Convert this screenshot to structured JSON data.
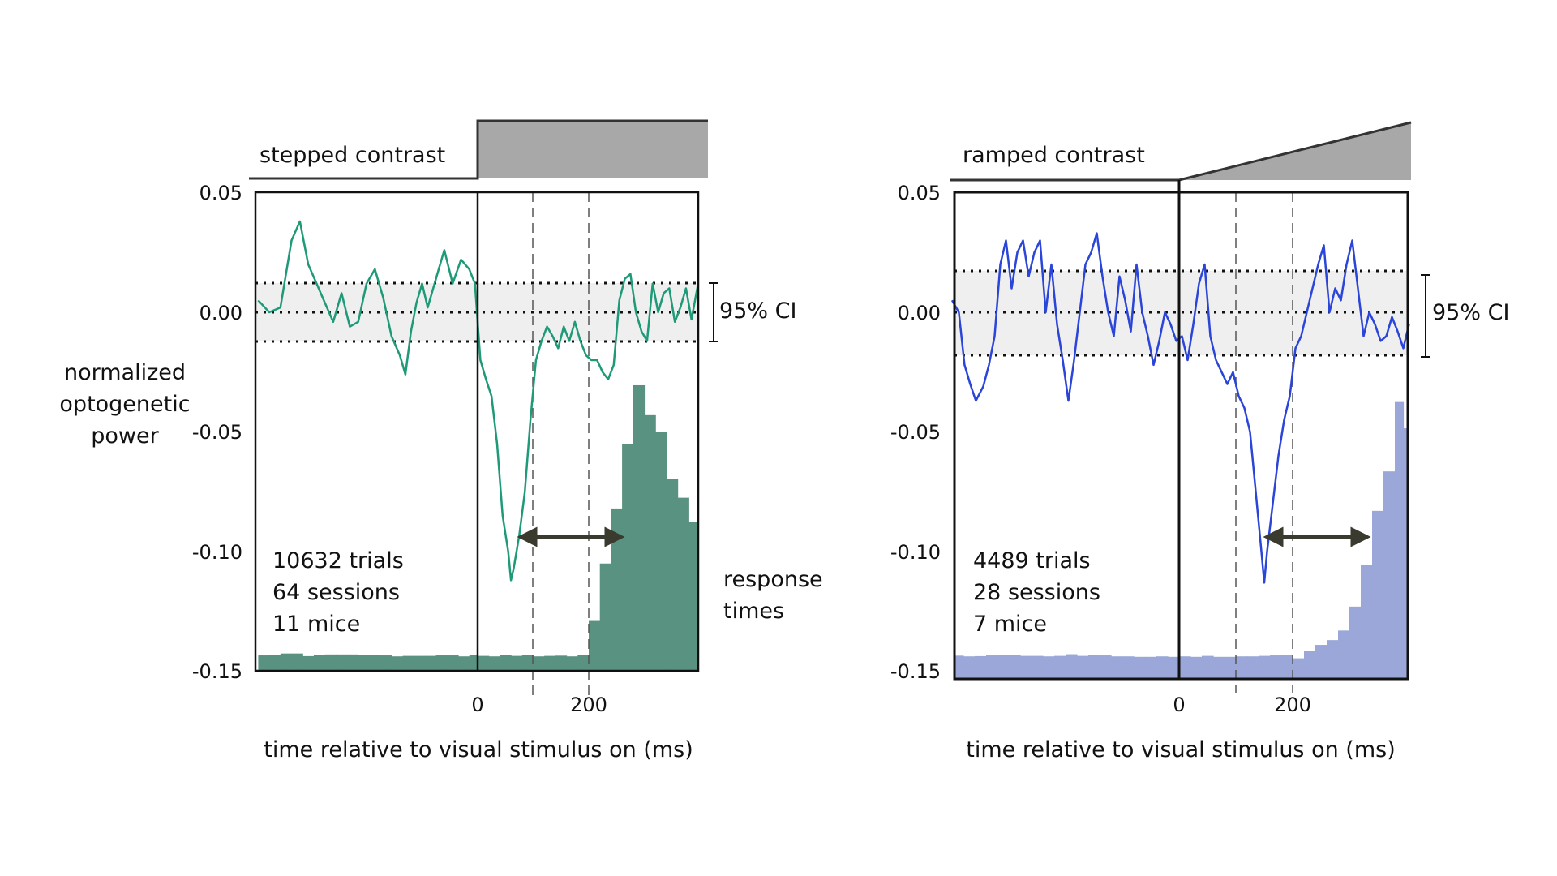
{
  "chart_data": [
    {
      "type": "line",
      "panel_label": "stepped contrast",
      "ylabel": "normalized optogenetic power",
      "ylabel_lines": [
        "normalized",
        "optogenetic",
        "power"
      ],
      "xlabel": "time relative to visual stimulus on (ms)",
      "yticks": [
        "0.05",
        "0.00",
        "-0.05",
        "-0.10",
        "-0.15"
      ],
      "ytick_values": [
        0.05,
        0.0,
        -0.05,
        -0.1,
        -0.15
      ],
      "xticks": [
        "0",
        "200"
      ],
      "xtick_values": [
        0,
        200
      ],
      "xlim": [
        -395,
        397
      ],
      "ylim": [
        -0.15,
        0.05
      ],
      "ci_label": "95% CI",
      "ci_bounds": [
        -0.0115,
        0.0125
      ],
      "stats": [
        "10632 trials",
        "64 sessions",
        "11 mice"
      ],
      "hist_label": [
        "response",
        "times"
      ],
      "colors": {
        "trace": "#1f9a78",
        "hist": "#5a9282",
        "ci_band": "#efefef"
      },
      "stimulus_shape": "step",
      "vlines_dashed_ms": [
        100,
        200
      ],
      "arrow_ms": [
        100,
        245
      ],
      "series": [
        {
          "values": [
            [
              -395,
              0.005
            ],
            [
              -375,
              0.0
            ],
            [
              -355,
              0.002
            ],
            [
              -335,
              0.03
            ],
            [
              -320,
              0.038
            ],
            [
              -305,
              0.02
            ],
            [
              -290,
              0.012
            ],
            [
              -275,
              0.004
            ],
            [
              -260,
              -0.004
            ],
            [
              -245,
              0.008
            ],
            [
              -230,
              -0.006
            ],
            [
              -215,
              -0.004
            ],
            [
              -200,
              0.012
            ],
            [
              -185,
              0.018
            ],
            [
              -170,
              0.006
            ],
            [
              -155,
              -0.01
            ],
            [
              -140,
              -0.018
            ],
            [
              -130,
              -0.026
            ],
            [
              -120,
              -0.008
            ],
            [
              -110,
              0.004
            ],
            [
              -100,
              0.012
            ],
            [
              -90,
              0.002
            ],
            [
              -80,
              0.01
            ],
            [
              -70,
              0.018
            ],
            [
              -60,
              0.026
            ],
            [
              -45,
              0.012
            ],
            [
              -30,
              0.022
            ],
            [
              -15,
              0.018
            ],
            [
              -5,
              0.012
            ],
            [
              5,
              -0.02
            ],
            [
              15,
              -0.028
            ],
            [
              25,
              -0.035
            ],
            [
              35,
              -0.055
            ],
            [
              45,
              -0.085
            ],
            [
              55,
              -0.1
            ],
            [
              60,
              -0.112
            ],
            [
              65,
              -0.107
            ],
            [
              75,
              -0.093
            ],
            [
              85,
              -0.075
            ],
            [
              95,
              -0.045
            ],
            [
              105,
              -0.02
            ],
            [
              115,
              -0.012
            ],
            [
              125,
              -0.006
            ],
            [
              135,
              -0.01
            ],
            [
              145,
              -0.015
            ],
            [
              155,
              -0.006
            ],
            [
              165,
              -0.012
            ],
            [
              175,
              -0.004
            ],
            [
              185,
              -0.012
            ],
            [
              195,
              -0.018
            ],
            [
              205,
              -0.02
            ],
            [
              215,
              -0.02
            ],
            [
              225,
              -0.025
            ],
            [
              235,
              -0.028
            ],
            [
              245,
              -0.022
            ],
            [
              255,
              0.005
            ],
            [
              265,
              0.014
            ],
            [
              275,
              0.016
            ],
            [
              285,
              0.0
            ],
            [
              295,
              -0.008
            ],
            [
              305,
              -0.012
            ],
            [
              315,
              0.012
            ],
            [
              325,
              0.0
            ],
            [
              335,
              0.008
            ],
            [
              345,
              0.01
            ],
            [
              355,
              -0.004
            ],
            [
              365,
              0.002
            ],
            [
              375,
              0.01
            ],
            [
              385,
              -0.003
            ],
            [
              397,
              0.012
            ]
          ]
        }
      ],
      "histogram": {
        "bins": [
          [
            -395,
            -375,
            -0.1434
          ],
          [
            -375,
            -355,
            -0.1433
          ],
          [
            -355,
            -335,
            -0.1426
          ],
          [
            -335,
            -315,
            -0.1426
          ],
          [
            -315,
            -295,
            -0.1437
          ],
          [
            -295,
            -275,
            -0.1432
          ],
          [
            -275,
            -255,
            -0.143
          ],
          [
            -255,
            -235,
            -0.143
          ],
          [
            -235,
            -215,
            -0.143
          ],
          [
            -215,
            -195,
            -0.1432
          ],
          [
            -195,
            -175,
            -0.1432
          ],
          [
            -175,
            -155,
            -0.1434
          ],
          [
            -155,
            -135,
            -0.1438
          ],
          [
            -135,
            -115,
            -0.1436
          ],
          [
            -115,
            -95,
            -0.1436
          ],
          [
            -95,
            -75,
            -0.1436
          ],
          [
            -75,
            -55,
            -0.1434
          ],
          [
            -55,
            -35,
            -0.1434
          ],
          [
            -35,
            -15,
            -0.1438
          ],
          [
            -15,
            0,
            -0.1432
          ],
          [
            0,
            20,
            -0.1436
          ],
          [
            20,
            40,
            -0.1438
          ],
          [
            40,
            60,
            -0.1432
          ],
          [
            60,
            80,
            -0.1436
          ],
          [
            80,
            100,
            -0.1432
          ],
          [
            100,
            120,
            -0.1438
          ],
          [
            120,
            140,
            -0.1436
          ],
          [
            140,
            160,
            -0.1435
          ],
          [
            160,
            180,
            -0.1438
          ],
          [
            180,
            200,
            -0.1432
          ],
          [
            200,
            220,
            -0.129
          ],
          [
            220,
            240,
            -0.105
          ],
          [
            240,
            260,
            -0.082
          ],
          [
            260,
            280,
            -0.055
          ],
          [
            280,
            300,
            -0.0305
          ],
          [
            300,
            320,
            -0.043
          ],
          [
            320,
            340,
            -0.05
          ],
          [
            340,
            360,
            -0.0695
          ],
          [
            360,
            380,
            -0.0775
          ],
          [
            380,
            397,
            -0.0875
          ]
        ]
      }
    },
    {
      "type": "line",
      "panel_label": "ramped contrast",
      "xlabel": "time relative to visual stimulus on (ms)",
      "yticks": [
        "0.05",
        "0.00",
        "-0.05",
        "-0.10",
        "-0.15"
      ],
      "ytick_values": [
        0.05,
        0.0,
        -0.05,
        -0.1,
        -0.15
      ],
      "xticks": [
        "0",
        "200"
      ],
      "xtick_values": [
        0,
        200
      ],
      "xlim": [
        -400,
        405
      ],
      "ylim": [
        -0.15,
        0.05
      ],
      "ci_label": "95% CI",
      "ci_bounds": [
        -0.0185,
        0.017
      ],
      "stats": [
        "4489 trials",
        "28 sessions",
        "7 mice"
      ],
      "colors": {
        "trace": "#2a45d8",
        "hist": "#9aa7d8",
        "ci_band": "#efefef"
      },
      "stimulus_shape": "ramp",
      "vlines_dashed_ms": [
        100,
        200
      ],
      "arrow_ms": [
        180,
        310
      ],
      "series": [
        {
          "values": [
            [
              -400,
              0.005
            ],
            [
              -388,
              0.0
            ],
            [
              -378,
              -0.022
            ],
            [
              -368,
              -0.03
            ],
            [
              -358,
              -0.037
            ],
            [
              -345,
              -0.031
            ],
            [
              -335,
              -0.022
            ],
            [
              -325,
              -0.01
            ],
            [
              -315,
              0.02
            ],
            [
              -305,
              0.03
            ],
            [
              -295,
              0.01
            ],
            [
              -285,
              0.025
            ],
            [
              -275,
              0.03
            ],
            [
              -265,
              0.015
            ],
            [
              -255,
              0.025
            ],
            [
              -245,
              0.03
            ],
            [
              -235,
              0.0
            ],
            [
              -225,
              0.02
            ],
            [
              -215,
              -0.005
            ],
            [
              -205,
              -0.02
            ],
            [
              -195,
              -0.037
            ],
            [
              -185,
              -0.02
            ],
            [
              -175,
              0.0
            ],
            [
              -165,
              0.02
            ],
            [
              -155,
              0.025
            ],
            [
              -145,
              0.033
            ],
            [
              -135,
              0.015
            ],
            [
              -125,
              0.0
            ],
            [
              -115,
              -0.01
            ],
            [
              -105,
              0.015
            ],
            [
              -95,
              0.005
            ],
            [
              -85,
              -0.008
            ],
            [
              -75,
              0.02
            ],
            [
              -65,
              0.0
            ],
            [
              -55,
              -0.01
            ],
            [
              -45,
              -0.022
            ],
            [
              -35,
              -0.012
            ],
            [
              -25,
              0.0
            ],
            [
              -15,
              -0.005
            ],
            [
              -5,
              -0.012
            ],
            [
              5,
              -0.01
            ],
            [
              15,
              -0.02
            ],
            [
              25,
              -0.005
            ],
            [
              35,
              0.012
            ],
            [
              45,
              0.02
            ],
            [
              55,
              -0.01
            ],
            [
              65,
              -0.02
            ],
            [
              75,
              -0.025
            ],
            [
              85,
              -0.03
            ],
            [
              95,
              -0.025
            ],
            [
              105,
              -0.035
            ],
            [
              115,
              -0.04
            ],
            [
              125,
              -0.05
            ],
            [
              135,
              -0.075
            ],
            [
              145,
              -0.1
            ],
            [
              150,
              -0.113
            ],
            [
              155,
              -0.1
            ],
            [
              165,
              -0.08
            ],
            [
              175,
              -0.06
            ],
            [
              185,
              -0.045
            ],
            [
              195,
              -0.035
            ],
            [
              205,
              -0.015
            ],
            [
              215,
              -0.01
            ],
            [
              225,
              0.0
            ],
            [
              235,
              0.01
            ],
            [
              245,
              0.02
            ],
            [
              255,
              0.028
            ],
            [
              265,
              0.0
            ],
            [
              275,
              0.01
            ],
            [
              285,
              0.005
            ],
            [
              295,
              0.02
            ],
            [
              305,
              0.03
            ],
            [
              315,
              0.01
            ],
            [
              325,
              -0.01
            ],
            [
              335,
              0.0
            ],
            [
              345,
              -0.005
            ],
            [
              355,
              -0.012
            ],
            [
              365,
              -0.01
            ],
            [
              375,
              -0.002
            ],
            [
              385,
              -0.008
            ],
            [
              395,
              -0.015
            ],
            [
              405,
              -0.005
            ]
          ]
        }
      ],
      "histogram": {
        "bins": [
          [
            -400,
            -380,
            -0.1435
          ],
          [
            -380,
            -360,
            -0.1438
          ],
          [
            -360,
            -340,
            -0.1437
          ],
          [
            -340,
            -320,
            -0.1434
          ],
          [
            -320,
            -300,
            -0.1433
          ],
          [
            -300,
            -280,
            -0.1432
          ],
          [
            -280,
            -260,
            -0.1436
          ],
          [
            -260,
            -240,
            -0.1436
          ],
          [
            -240,
            -220,
            -0.1438
          ],
          [
            -220,
            -200,
            -0.1436
          ],
          [
            -200,
            -180,
            -0.1429
          ],
          [
            -180,
            -160,
            -0.1436
          ],
          [
            -160,
            -140,
            -0.1432
          ],
          [
            -140,
            -120,
            -0.1434
          ],
          [
            -120,
            -100,
            -0.1438
          ],
          [
            -100,
            -80,
            -0.1438
          ],
          [
            -80,
            -60,
            -0.144
          ],
          [
            -60,
            -40,
            -0.144
          ],
          [
            -40,
            -20,
            -0.1438
          ],
          [
            -20,
            0,
            -0.144
          ],
          [
            0,
            20,
            -0.1438
          ],
          [
            20,
            40,
            -0.144
          ],
          [
            40,
            60,
            -0.1436
          ],
          [
            60,
            80,
            -0.144
          ],
          [
            80,
            100,
            -0.144
          ],
          [
            100,
            120,
            -0.1438
          ],
          [
            120,
            140,
            -0.1438
          ],
          [
            140,
            160,
            -0.1436
          ],
          [
            160,
            180,
            -0.1434
          ],
          [
            180,
            200,
            -0.1432
          ],
          [
            200,
            220,
            -0.1446
          ],
          [
            220,
            240,
            -0.1414
          ],
          [
            240,
            260,
            -0.139
          ],
          [
            260,
            280,
            -0.137
          ],
          [
            280,
            300,
            -0.133
          ],
          [
            300,
            320,
            -0.123
          ],
          [
            320,
            340,
            -0.1055
          ],
          [
            340,
            360,
            -0.083
          ],
          [
            360,
            380,
            -0.0665
          ],
          [
            380,
            395,
            -0.0375
          ],
          [
            395,
            405,
            -0.0485
          ]
        ]
      }
    }
  ]
}
